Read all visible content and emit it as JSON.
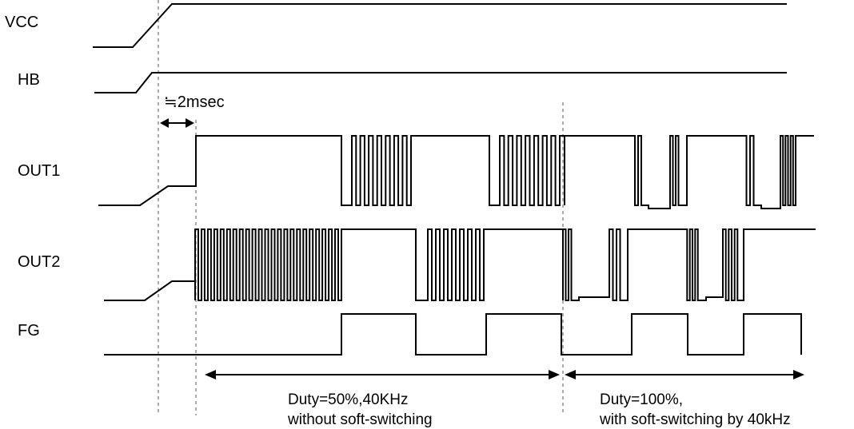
{
  "signals": [
    {
      "id": "vcc",
      "label": "VCC"
    },
    {
      "id": "hb",
      "label": "HB"
    },
    {
      "id": "out1",
      "label": "OUT1"
    },
    {
      "id": "out2",
      "label": "OUT2"
    },
    {
      "id": "fg",
      "label": "FG"
    }
  ],
  "annotations": {
    "delay": "≒2msec",
    "phase1_line1": "Duty=50%,40KHz",
    "phase1_line2": "without soft-switching",
    "phase2_line1": "Duty=100%,",
    "phase2_line2": "with soft-switching  by 40kHz"
  },
  "colors": {
    "line": "#000000",
    "guide": "#555555",
    "background": "#ffffff"
  }
}
